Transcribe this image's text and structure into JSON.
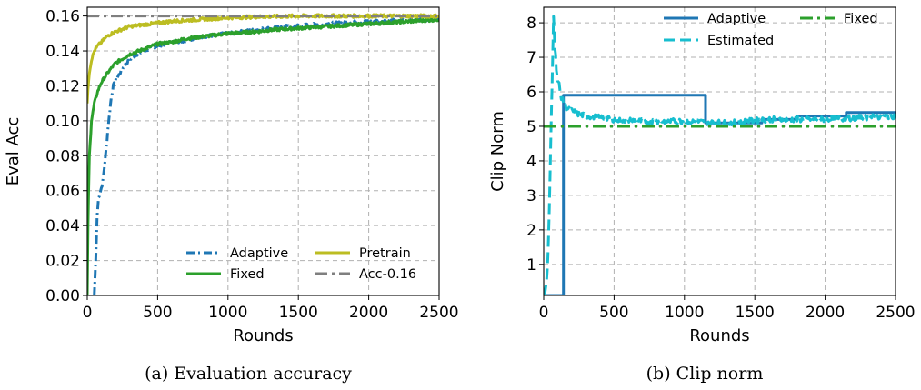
{
  "colors": {
    "adaptive": "#1f77b4",
    "fixed": "#2ca02c",
    "pretrain": "#bcbd22",
    "reference": "#7f7f7f",
    "estimated": "#17becf"
  },
  "chart_data": [
    {
      "type": "line",
      "caption": "(a) Evaluation accuracy",
      "xlabel": "Rounds",
      "ylabel": "Eval Acc",
      "xlim": [
        0,
        2500
      ],
      "ylim": [
        0,
        0.165
      ],
      "xticks": [
        0,
        500,
        1000,
        1500,
        2000,
        2500
      ],
      "xtick_labels": [
        "0",
        "500",
        "1000",
        "1500",
        "2000",
        "2500"
      ],
      "yticks": [
        0,
        0.02,
        0.04,
        0.06,
        0.08,
        0.1,
        0.12,
        0.14,
        0.16
      ],
      "ytick_labels": [
        "0.00",
        "0.02",
        "0.04",
        "0.06",
        "0.08",
        "0.10",
        "0.12",
        "0.14",
        "0.16"
      ],
      "grid": true,
      "legend_position": "bottom-right",
      "series": [
        {
          "name": "Adaptive",
          "color_key": "adaptive",
          "dash": "9 4 2 4",
          "noise": 0.0009,
          "legend_order": 0,
          "x": [
            50,
            60,
            70,
            80,
            95,
            110,
            130,
            150,
            170,
            185,
            200,
            230,
            260,
            300,
            350,
            400,
            500,
            600,
            700,
            800,
            900,
            1000,
            1100,
            1200,
            1300,
            1400,
            1500,
            1600,
            1700,
            1800,
            1900,
            2000,
            2100,
            2200,
            2300,
            2400,
            2500
          ],
          "y": [
            0,
            0.02,
            0.045,
            0.056,
            0.06,
            0.065,
            0.08,
            0.098,
            0.113,
            0.12,
            0.123,
            0.127,
            0.131,
            0.135,
            0.138,
            0.14,
            0.143,
            0.145,
            0.146,
            0.148,
            0.149,
            0.15,
            0.151,
            0.152,
            0.153,
            0.154,
            0.1545,
            0.155,
            0.1555,
            0.156,
            0.1565,
            0.157,
            0.1572,
            0.1575,
            0.1578,
            0.158,
            0.158
          ]
        },
        {
          "name": "Fixed",
          "color_key": "fixed",
          "dash": "",
          "noise": 0.0009,
          "legend_order": 1,
          "x": [
            0,
            5,
            15,
            30,
            50,
            75,
            100,
            150,
            200,
            300,
            400,
            500,
            600,
            700,
            800,
            900,
            1000,
            1100,
            1200,
            1300,
            1400,
            1500,
            1600,
            1700,
            1800,
            1900,
            2000,
            2100,
            2200,
            2300,
            2400,
            2500
          ],
          "y": [
            0,
            0.04,
            0.08,
            0.1,
            0.11,
            0.117,
            0.122,
            0.128,
            0.133,
            0.138,
            0.141,
            0.144,
            0.145,
            0.147,
            0.148,
            0.149,
            0.15,
            0.1505,
            0.151,
            0.152,
            0.1525,
            0.153,
            0.1535,
            0.154,
            0.1545,
            0.155,
            0.1555,
            0.156,
            0.1565,
            0.157,
            0.1575,
            0.158
          ]
        },
        {
          "name": "Pretrain",
          "color_key": "pretrain",
          "dash": "",
          "noise": 0.0009,
          "legend_order": 2,
          "x": [
            0,
            5,
            15,
            30,
            50,
            75,
            100,
            150,
            200,
            300,
            400,
            500,
            600,
            800,
            1000,
            1200,
            1500,
            1800,
            2000,
            2500
          ],
          "y": [
            0.11,
            0.118,
            0.127,
            0.135,
            0.14,
            0.143,
            0.145,
            0.149,
            0.151,
            0.154,
            0.155,
            0.156,
            0.157,
            0.158,
            0.159,
            0.1595,
            0.16,
            0.16,
            0.16,
            0.16
          ]
        },
        {
          "name": "Acc-0.16",
          "color_key": "reference",
          "dash": "13 5 3 5",
          "noise": 0,
          "legend_order": 3,
          "x": [
            0,
            2500
          ],
          "y": [
            0.16,
            0.16
          ]
        }
      ]
    },
    {
      "type": "line",
      "caption": "(b) Clip norm",
      "xlabel": "Rounds",
      "ylabel": "Clip Norm",
      "xlim": [
        0,
        2500
      ],
      "ylim": [
        0.1,
        8.45
      ],
      "xticks": [
        0,
        500,
        1000,
        1500,
        2000,
        2500
      ],
      "xtick_labels": [
        "0",
        "500",
        "1000",
        "1500",
        "2000",
        "2500"
      ],
      "yticks": [
        1,
        2,
        3,
        4,
        5,
        6,
        7,
        8
      ],
      "ytick_labels": [
        "1",
        "2",
        "3",
        "4",
        "5",
        "6",
        "7",
        "8"
      ],
      "grid": true,
      "legend_position": "top-right",
      "series": [
        {
          "name": "Adaptive",
          "color_key": "adaptive",
          "dash": "",
          "noise": 0,
          "legend_order": 0,
          "x": [
            0,
            120,
            120,
            140,
            140,
            1150,
            1150,
            1550,
            1550,
            1800,
            1800,
            2150,
            2150,
            2500
          ],
          "y": [
            0.1,
            0.1,
            0.1,
            0.1,
            5.9,
            5.9,
            5.1,
            5.1,
            5.2,
            5.2,
            5.3,
            5.3,
            5.4,
            5.4
          ]
        },
        {
          "name": "Estimated",
          "color_key": "estimated",
          "dash": "12 6",
          "noise": 0.08,
          "legend_order": 1,
          "x": [
            0,
            10,
            20,
            30,
            40,
            50,
            60,
            70,
            80,
            90,
            100,
            110,
            120,
            130,
            150,
            170,
            200,
            250,
            300,
            400,
            500,
            700,
            1000,
            1300,
            1600,
            2000,
            2500
          ],
          "y": [
            0.1,
            0.2,
            0.5,
            1.2,
            2.6,
            4.5,
            6.3,
            8.25,
            7.3,
            6.7,
            6.3,
            6.2,
            5.9,
            5.8,
            5.6,
            5.5,
            5.45,
            5.35,
            5.3,
            5.25,
            5.2,
            5.15,
            5.15,
            5.1,
            5.2,
            5.2,
            5.3
          ]
        },
        {
          "name": "Fixed",
          "color_key": "fixed",
          "dash": "14 5 3 5",
          "noise": 0,
          "legend_order": 2,
          "x": [
            0,
            2500
          ],
          "y": [
            5.0,
            5.0
          ]
        }
      ]
    }
  ]
}
